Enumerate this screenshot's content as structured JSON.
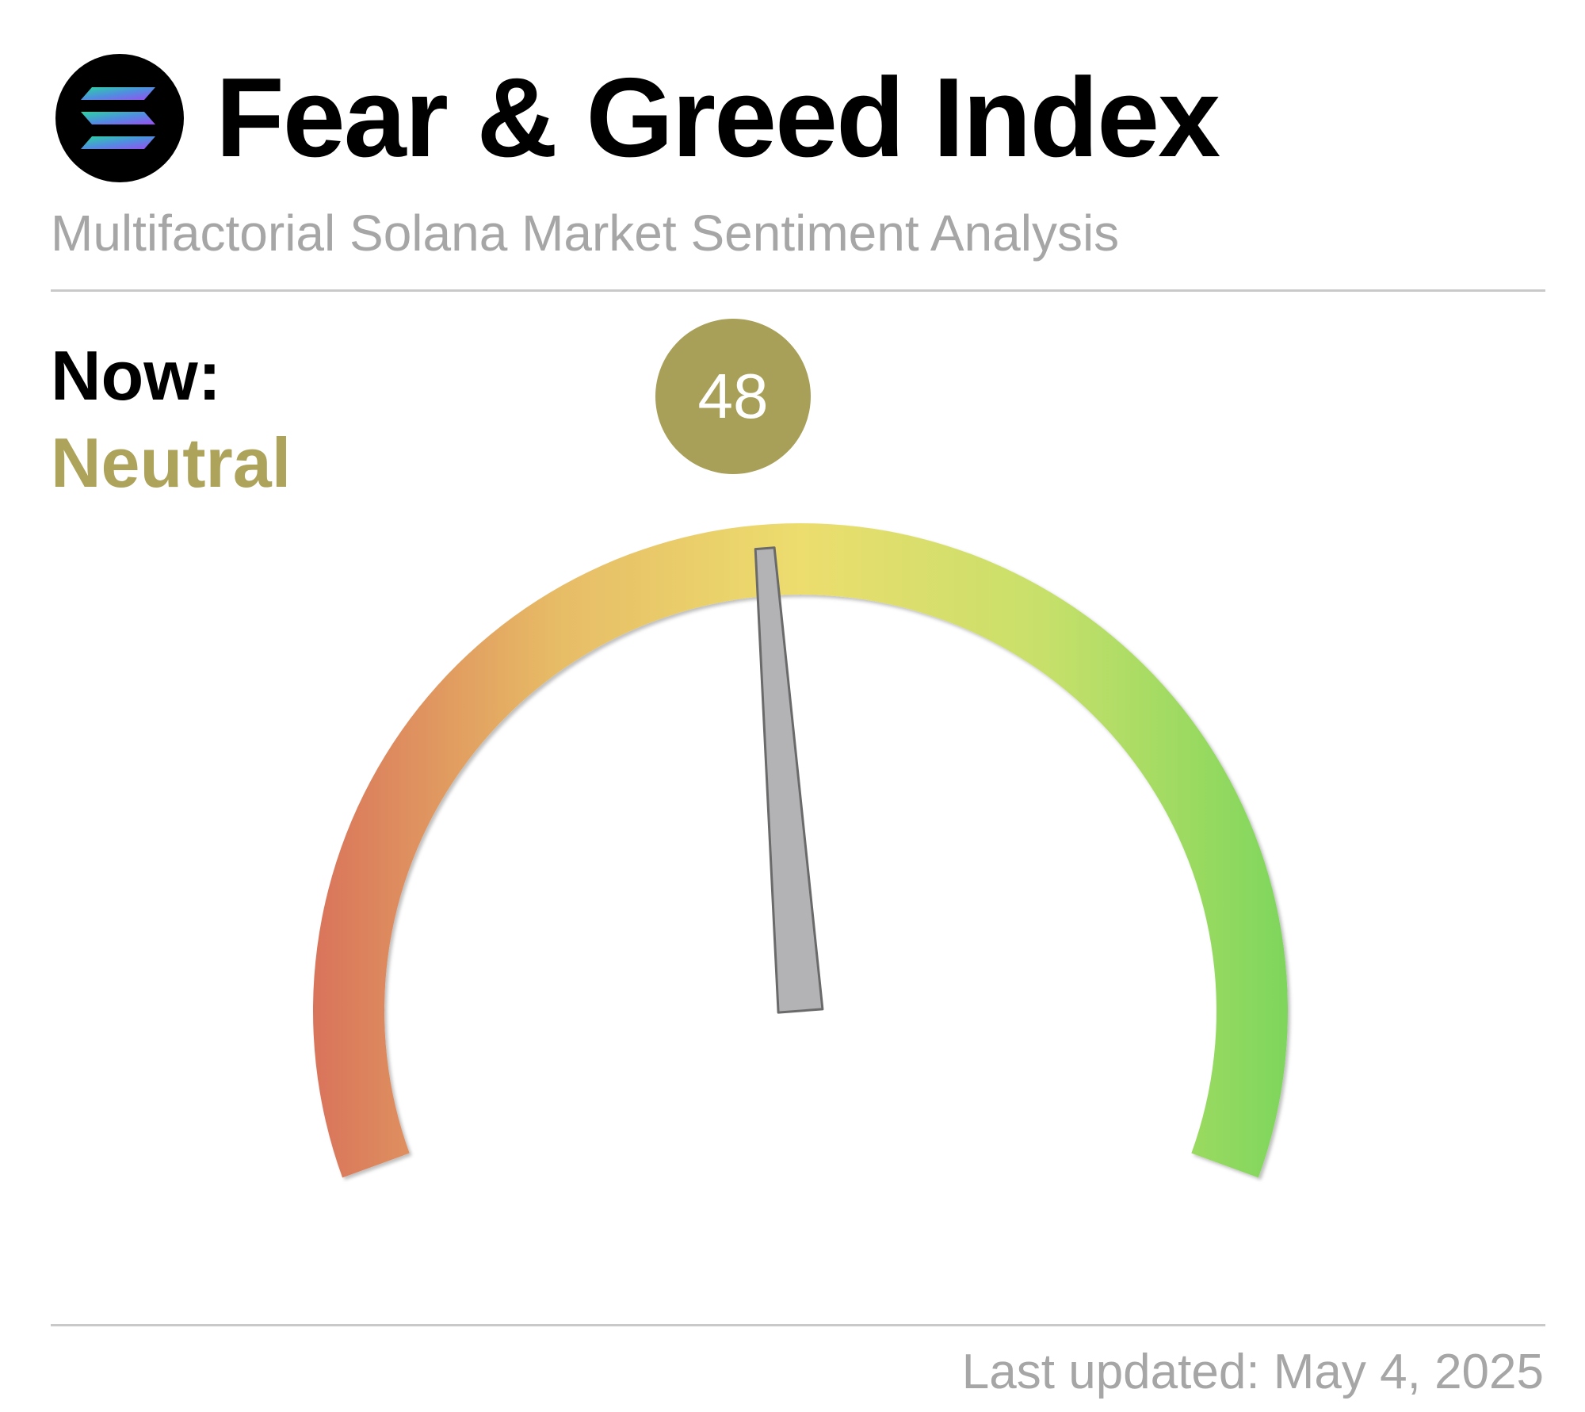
{
  "header": {
    "title": "Fear & Greed Index",
    "subtitle": "Multifactorial Solana Market Sentiment Analysis",
    "logo_icon": "solana-logo-icon"
  },
  "status": {
    "now_label": "Now:",
    "label": "Neutral",
    "value_display": "48"
  },
  "footer": {
    "last_updated": "Last updated: May 4, 2025"
  },
  "colors": {
    "status": "#ada35a",
    "badge": "#a89f58",
    "gauge_low": "#d9735a",
    "gauge_mid": "#ecdd6e",
    "gauge_high": "#7ed65c",
    "needle": "#b3b3b6",
    "needle_stroke": "#6a6a6a"
  },
  "chart_data": {
    "type": "gauge",
    "value": 48,
    "range": [
      0,
      100
    ],
    "color_stops": [
      "#d9735a",
      "#e7bc66",
      "#ecdd6e",
      "#c7e06a",
      "#7ed65c"
    ]
  }
}
